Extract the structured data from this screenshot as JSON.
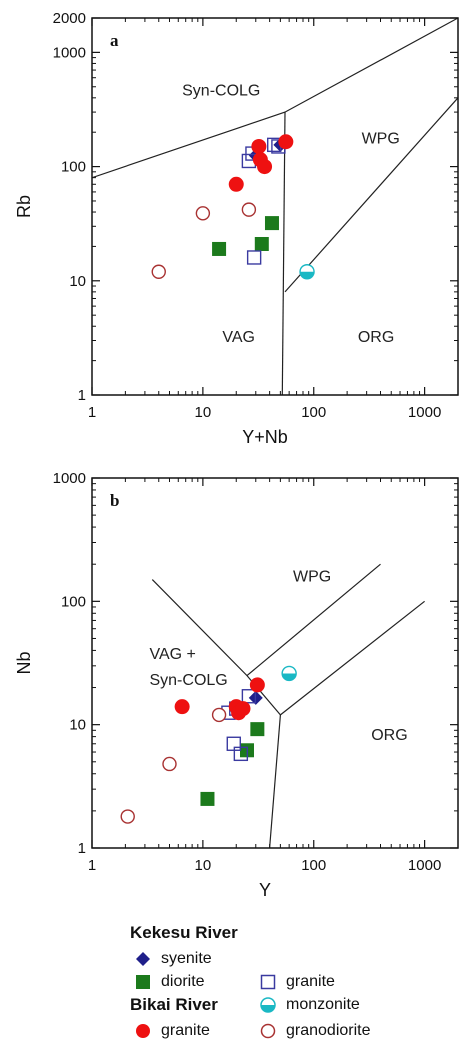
{
  "colors": {
    "syenite": "#1f1f8a",
    "diorite": "#1c7a1c",
    "granite_kekesu": "#3a3aa0",
    "monzonite": "#1ab8c4",
    "granite_bikai": "#ee1111",
    "granodiorite": "#a83232",
    "boundary": "#222222"
  },
  "chart_data": [
    {
      "type": "scatter",
      "panel_label": "a",
      "xlabel": "Y+Nb",
      "ylabel": "Rb",
      "xscale": "log",
      "yscale": "log",
      "xlim": [
        1,
        2000
      ],
      "ylim": [
        1,
        2000
      ],
      "x_ticks": [
        {
          "v": 1,
          "t": "1"
        },
        {
          "v": 10,
          "t": "10"
        },
        {
          "v": 100,
          "t": "100"
        },
        {
          "v": 1000,
          "t": "1000"
        }
      ],
      "y_ticks": [
        {
          "v": 1,
          "t": "1"
        },
        {
          "v": 10,
          "t": "10"
        },
        {
          "v": 100,
          "t": "100"
        },
        {
          "v": 1000,
          "t": "1000"
        },
        {
          "v": 2000,
          "t": "2000"
        }
      ],
      "regions": [
        {
          "label": "Syn-COLG",
          "x": 6.5,
          "y": 420
        },
        {
          "label": "WPG",
          "x": 270,
          "y": 160
        },
        {
          "label": "VAG",
          "x": 15,
          "y": 2.9
        },
        {
          "label": "ORG",
          "x": 250,
          "y": 2.9
        }
      ],
      "boundaries": [
        [
          [
            1,
            80
          ],
          [
            55,
            300
          ],
          [
            2000,
            2000
          ]
        ],
        [
          [
            55,
            300
          ],
          [
            52,
            1
          ]
        ],
        [
          [
            55,
            8
          ],
          [
            2000,
            400
          ]
        ]
      ],
      "series": [
        {
          "name": "syenite",
          "marker": "diamond",
          "points": [
            [
              30,
              125
            ],
            [
              50,
              155
            ]
          ]
        },
        {
          "name": "diorite",
          "marker": "square-filled",
          "points": [
            [
              14,
              19
            ],
            [
              34,
              21
            ],
            [
              42,
              32
            ]
          ]
        },
        {
          "name": "granite_kekesu",
          "marker": "square-open",
          "points": [
            [
              26,
              112
            ],
            [
              28,
              130
            ],
            [
              44,
              155
            ],
            [
              48,
              150
            ],
            [
              29,
              16
            ]
          ]
        },
        {
          "name": "monzonite",
          "marker": "half-circle",
          "points": [
            [
              87,
              12
            ]
          ]
        },
        {
          "name": "granite_bikai",
          "marker": "circle-filled",
          "points": [
            [
              20,
              70
            ],
            [
              32,
              150
            ],
            [
              33,
              115
            ],
            [
              36,
              100
            ],
            [
              56,
              165
            ]
          ]
        },
        {
          "name": "granodiorite",
          "marker": "circle-open",
          "points": [
            [
              4,
              12
            ],
            [
              10,
              39
            ],
            [
              26,
              42
            ]
          ]
        }
      ]
    },
    {
      "type": "scatter",
      "panel_label": "b",
      "xlabel": "Y",
      "ylabel": "Nb",
      "xscale": "log",
      "yscale": "log",
      "xlim": [
        1,
        2000
      ],
      "ylim": [
        1,
        1000
      ],
      "x_ticks": [
        {
          "v": 1,
          "t": "1"
        },
        {
          "v": 10,
          "t": "10"
        },
        {
          "v": 100,
          "t": "100"
        },
        {
          "v": 1000,
          "t": "1000"
        }
      ],
      "y_ticks": [
        {
          "v": 1,
          "t": "1"
        },
        {
          "v": 10,
          "t": "10"
        },
        {
          "v": 100,
          "t": "100"
        },
        {
          "v": 1000,
          "t": "1000"
        }
      ],
      "regions": [
        {
          "label": "WPG",
          "x": 65,
          "y": 145
        },
        {
          "label": "VAG +",
          "x": 3.3,
          "y": 34
        },
        {
          "label": "Syn-COLG",
          "x": 3.3,
          "y": 21
        },
        {
          "label": "ORG",
          "x": 330,
          "y": 7.5
        }
      ],
      "boundaries": [
        [
          [
            3.5,
            150
          ],
          [
            25,
            25
          ],
          [
            50,
            12
          ]
        ],
        [
          [
            25,
            25
          ],
          [
            400,
            200
          ]
        ],
        [
          [
            50,
            12
          ],
          [
            1000,
            100
          ]
        ],
        [
          [
            50,
            12
          ],
          [
            40,
            1
          ]
        ]
      ],
      "series": [
        {
          "name": "syenite",
          "marker": "diamond",
          "points": [
            [
              30,
              16.5
            ]
          ]
        },
        {
          "name": "diorite",
          "marker": "square-filled",
          "points": [
            [
              11,
              2.5
            ],
            [
              25,
              6.2
            ],
            [
              31,
              9.2
            ]
          ]
        },
        {
          "name": "granite_kekesu",
          "marker": "square-open",
          "points": [
            [
              19,
              7
            ],
            [
              22,
              5.8
            ],
            [
              17,
              12.5
            ],
            [
              20,
              13.5
            ],
            [
              26,
              17
            ]
          ]
        },
        {
          "name": "monzonite",
          "marker": "half-circle",
          "points": [
            [
              60,
              26
            ]
          ]
        },
        {
          "name": "granite_bikai",
          "marker": "circle-filled",
          "points": [
            [
              6.5,
              14
            ],
            [
              20,
              14
            ],
            [
              21,
              12.5
            ],
            [
              23,
              13.5
            ],
            [
              31,
              21
            ]
          ]
        },
        {
          "name": "granodiorite",
          "marker": "circle-open",
          "points": [
            [
              2.1,
              1.8
            ],
            [
              5,
              4.8
            ],
            [
              14,
              12
            ]
          ]
        }
      ]
    }
  ],
  "legend": {
    "group1_title": "Kekesu River",
    "group2_title": "Bikai River",
    "syenite": "syenite",
    "diorite": "diorite",
    "granite_kekesu": "granite",
    "monzonite": "monzonite",
    "granite_bikai": "granite",
    "granodiorite": "granodiorite"
  }
}
